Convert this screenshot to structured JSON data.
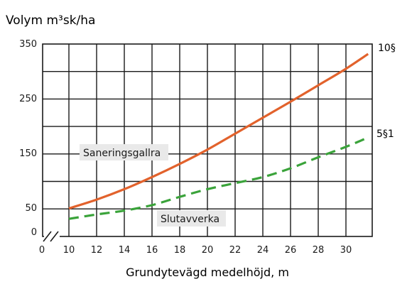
{
  "chart_data": {
    "type": "line",
    "title": "",
    "ylabel": "Volym m³sk/ha",
    "xlabel": "Grundytevägd medelhöjd, m",
    "x_ticks": [
      "0",
      "10",
      "12",
      "14",
      "16",
      "18",
      "20",
      "22",
      "24",
      "26",
      "28",
      "30"
    ],
    "y_ticks": [
      "0",
      "50",
      "150",
      "250",
      "350"
    ],
    "xlim": [
      10,
      31.6
    ],
    "ylim": [
      0,
      350
    ],
    "grid": true,
    "axis_break": true,
    "right_labels": [
      "10§",
      "5§1"
    ],
    "series": [
      {
        "name": "Saneringsgallra",
        "color": "#e2622c",
        "style": "solid",
        "x": [
          10,
          12,
          14,
          16,
          18,
          20,
          22,
          24,
          26,
          28,
          30,
          31.6
        ],
        "y": [
          51,
          67,
          86,
          108,
          132,
          158,
          187,
          216,
          245,
          275,
          305,
          332
        ]
      },
      {
        "name": "Slutavverka",
        "color": "#3aa33a",
        "style": "dashed",
        "x": [
          10,
          12,
          14,
          16,
          18,
          20,
          22,
          24,
          26,
          28,
          30,
          31.6
        ],
        "y": [
          32,
          40,
          47,
          57,
          72,
          86,
          97,
          108,
          124,
          144,
          163,
          180
        ]
      }
    ]
  }
}
